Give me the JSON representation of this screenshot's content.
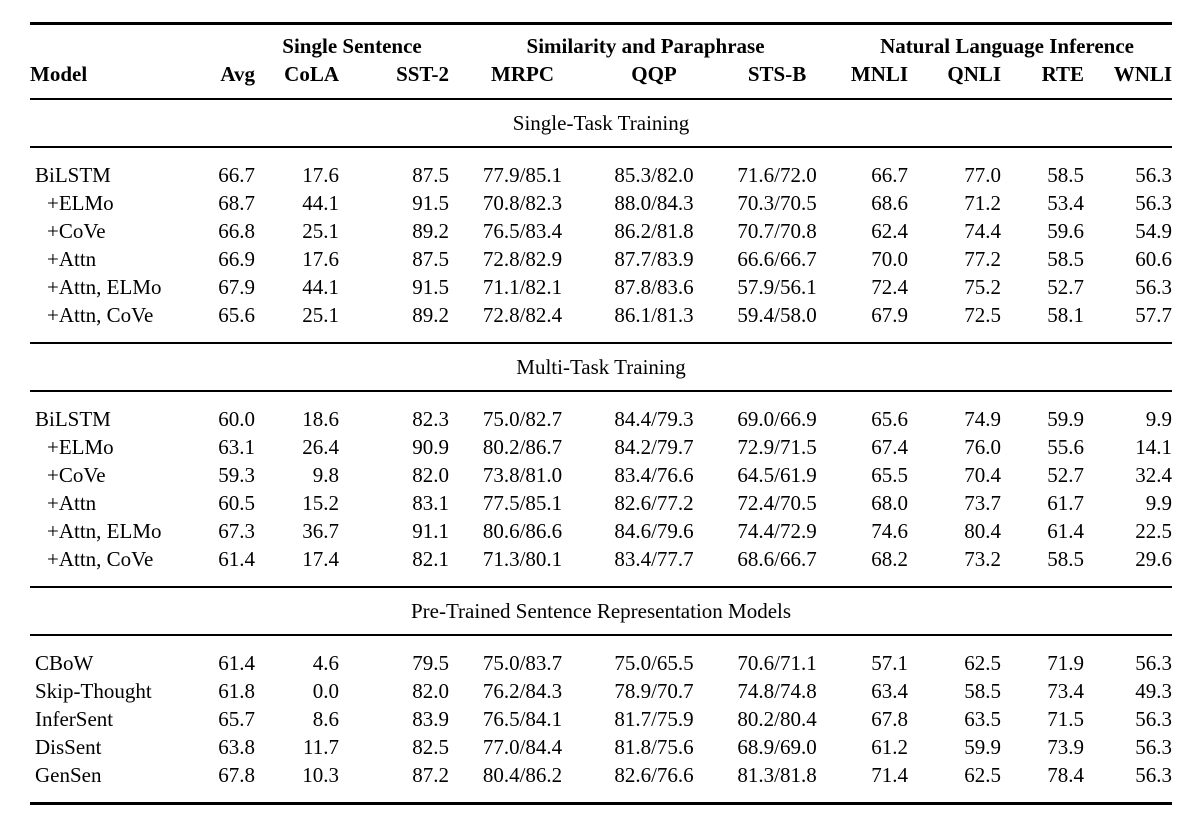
{
  "page": {
    "background": "#ffffff",
    "text_color": "#000000"
  },
  "table": {
    "group_headers": [
      {
        "label": "",
        "span": 2
      },
      {
        "label": "Single Sentence",
        "span": 2
      },
      {
        "label": "Similarity and Paraphrase",
        "span": 3
      },
      {
        "label": "Natural Language Inference",
        "span": 4
      }
    ],
    "columns": [
      "Model",
      "Avg",
      "CoLA",
      "SST-2",
      "MRPC",
      "QQP",
      "STS-B",
      "MNLI",
      "QNLI",
      "RTE",
      "WNLI"
    ],
    "sections": [
      {
        "title": "Single-Task Training",
        "rows": [
          {
            "model": "BiLSTM",
            "indent": false,
            "values": [
              "66.7",
              "17.6",
              "87.5",
              "77.9/85.1",
              "85.3/82.0",
              "71.6/72.0",
              "66.7",
              "77.0",
              "58.5",
              "56.3"
            ]
          },
          {
            "model": "+ELMo",
            "indent": true,
            "values": [
              "68.7",
              "44.1",
              "91.5",
              "70.8/82.3",
              "88.0/84.3",
              "70.3/70.5",
              "68.6",
              "71.2",
              "53.4",
              "56.3"
            ]
          },
          {
            "model": "+CoVe",
            "indent": true,
            "values": [
              "66.8",
              "25.1",
              "89.2",
              "76.5/83.4",
              "86.2/81.8",
              "70.7/70.8",
              "62.4",
              "74.4",
              "59.6",
              "54.9"
            ]
          },
          {
            "model": "+Attn",
            "indent": true,
            "values": [
              "66.9",
              "17.6",
              "87.5",
              "72.8/82.9",
              "87.7/83.9",
              "66.6/66.7",
              "70.0",
              "77.2",
              "58.5",
              "60.6"
            ]
          },
          {
            "model": "+Attn, ELMo",
            "indent": true,
            "values": [
              "67.9",
              "44.1",
              "91.5",
              "71.1/82.1",
              "87.8/83.6",
              "57.9/56.1",
              "72.4",
              "75.2",
              "52.7",
              "56.3"
            ]
          },
          {
            "model": "+Attn, CoVe",
            "indent": true,
            "values": [
              "65.6",
              "25.1",
              "89.2",
              "72.8/82.4",
              "86.1/81.3",
              "59.4/58.0",
              "67.9",
              "72.5",
              "58.1",
              "57.7"
            ]
          }
        ]
      },
      {
        "title": "Multi-Task Training",
        "rows": [
          {
            "model": "BiLSTM",
            "indent": false,
            "values": [
              "60.0",
              "18.6",
              "82.3",
              "75.0/82.7",
              "84.4/79.3",
              "69.0/66.9",
              "65.6",
              "74.9",
              "59.9",
              "9.9"
            ]
          },
          {
            "model": "+ELMo",
            "indent": true,
            "values": [
              "63.1",
              "26.4",
              "90.9",
              "80.2/86.7",
              "84.2/79.7",
              "72.9/71.5",
              "67.4",
              "76.0",
              "55.6",
              "14.1"
            ]
          },
          {
            "model": "+CoVe",
            "indent": true,
            "values": [
              "59.3",
              "9.8",
              "82.0",
              "73.8/81.0",
              "83.4/76.6",
              "64.5/61.9",
              "65.5",
              "70.4",
              "52.7",
              "32.4"
            ]
          },
          {
            "model": "+Attn",
            "indent": true,
            "values": [
              "60.5",
              "15.2",
              "83.1",
              "77.5/85.1",
              "82.6/77.2",
              "72.4/70.5",
              "68.0",
              "73.7",
              "61.7",
              "9.9"
            ]
          },
          {
            "model": "+Attn, ELMo",
            "indent": true,
            "values": [
              "67.3",
              "36.7",
              "91.1",
              "80.6/86.6",
              "84.6/79.6",
              "74.4/72.9",
              "74.6",
              "80.4",
              "61.4",
              "22.5"
            ]
          },
          {
            "model": "+Attn, CoVe",
            "indent": true,
            "values": [
              "61.4",
              "17.4",
              "82.1",
              "71.3/80.1",
              "83.4/77.7",
              "68.6/66.7",
              "68.2",
              "73.2",
              "58.5",
              "29.6"
            ]
          }
        ]
      },
      {
        "title": "Pre-Trained Sentence Representation Models",
        "rows": [
          {
            "model": "CBoW",
            "indent": false,
            "values": [
              "61.4",
              "4.6",
              "79.5",
              "75.0/83.7",
              "75.0/65.5",
              "70.6/71.1",
              "57.1",
              "62.5",
              "71.9",
              "56.3"
            ]
          },
          {
            "model": "Skip-Thought",
            "indent": false,
            "values": [
              "61.8",
              "0.0",
              "82.0",
              "76.2/84.3",
              "78.9/70.7",
              "74.8/74.8",
              "63.4",
              "58.5",
              "73.4",
              "49.3"
            ]
          },
          {
            "model": "InferSent",
            "indent": false,
            "values": [
              "65.7",
              "8.6",
              "83.9",
              "76.5/84.1",
              "81.7/75.9",
              "80.2/80.4",
              "67.8",
              "63.5",
              "71.5",
              "56.3"
            ]
          },
          {
            "model": "DisSent",
            "indent": false,
            "values": [
              "63.8",
              "11.7",
              "82.5",
              "77.0/84.4",
              "81.8/75.6",
              "68.9/69.0",
              "61.2",
              "59.9",
              "73.9",
              "56.3"
            ]
          },
          {
            "model": "GenSen",
            "indent": false,
            "values": [
              "67.8",
              "10.3",
              "87.2",
              "80.4/86.2",
              "82.6/76.6",
              "81.3/81.8",
              "71.4",
              "62.5",
              "78.4",
              "56.3"
            ]
          }
        ]
      }
    ]
  }
}
